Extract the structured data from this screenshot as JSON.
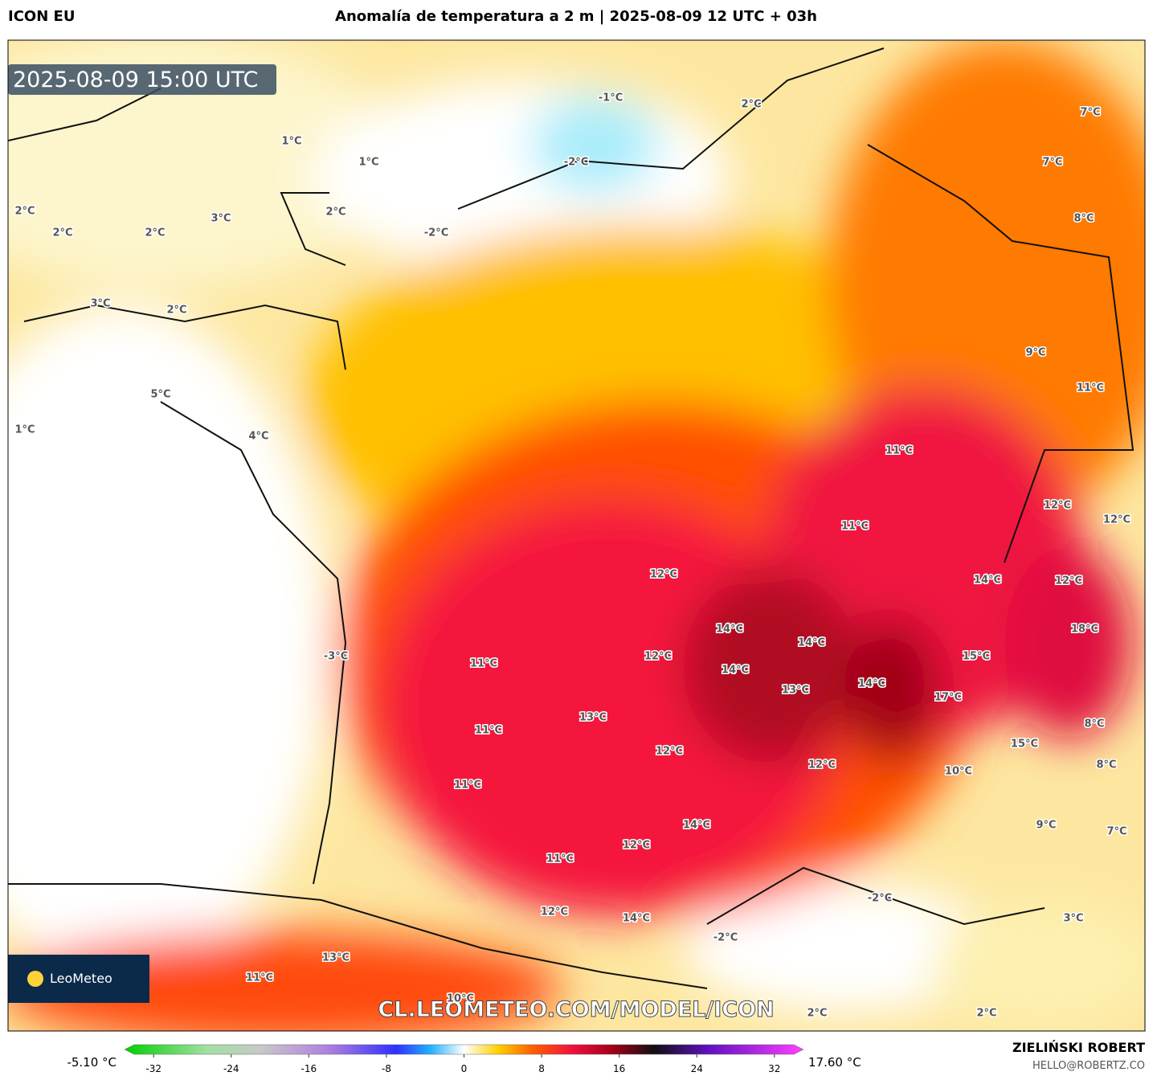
{
  "header": {
    "model": "ICON EU",
    "title": "Anomalía de temperatura a 2 m | 2025-08-09 12 UTC + 03h"
  },
  "map": {
    "timestamp": "2025-08-09 15:00 UTC",
    "watermark": "CL.LEOMETEO.COM/MODEL/ICON",
    "logo": "LeoMeteo",
    "labels": [
      "-1°C",
      "2°C",
      "7°C",
      "1°C",
      "1°C",
      "-2°C",
      "7°C",
      "2°C",
      "3°C",
      "2°C",
      "8°C",
      "2°C",
      "2°C",
      "-2°C",
      "3°C",
      "2°C",
      "9°C",
      "11°C",
      "5°C",
      "1°C",
      "4°C",
      "11°C",
      "12°C",
      "12°C",
      "11°C",
      "12°C",
      "14°C",
      "12°C",
      "14°C",
      "18°C",
      "14°C",
      "15°C",
      "-3°C",
      "11°C",
      "12°C",
      "14°C",
      "14°C",
      "13°C",
      "17°C",
      "13°C",
      "8°C",
      "11°C",
      "12°C",
      "15°C",
      "12°C",
      "8°C",
      "10°C",
      "11°C",
      "14°C",
      "9°C",
      "7°C",
      "12°C",
      "11°C",
      "-2°C",
      "12°C",
      "14°C",
      "3°C",
      "-2°C",
      "13°C",
      "11°C",
      "10°C",
      "2°C",
      "2°C"
    ]
  },
  "colorbar": {
    "min_label": "-5.10 °C",
    "max_label": "17.60 °C",
    "lim": [
      -35,
      35
    ],
    "ticks": [
      -32,
      -24,
      -16,
      -8,
      0,
      8,
      16,
      24,
      32
    ]
  },
  "footer": {
    "author": "ZIELIŃSKI ROBERT",
    "email": "HELLO@ROBERTZ.CO"
  }
}
